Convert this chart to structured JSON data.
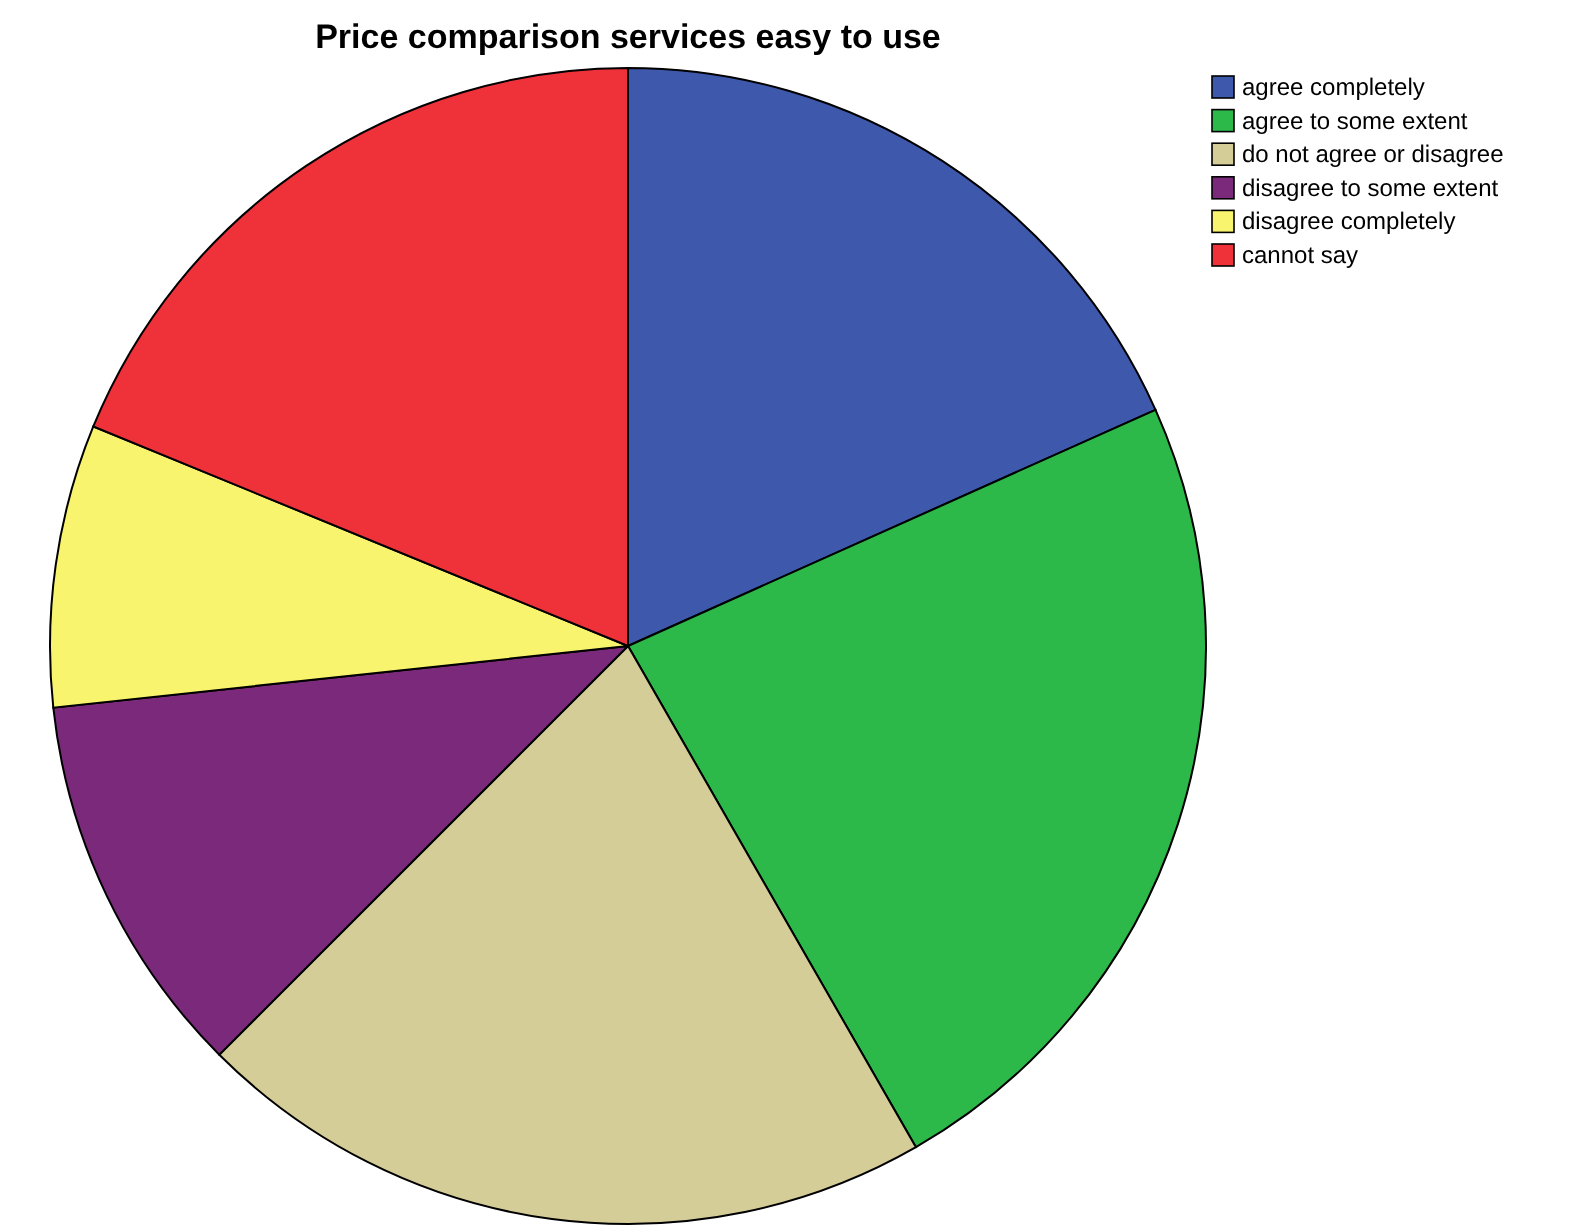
{
  "chart_data": {
    "type": "pie",
    "title": "Price comparison services easy to use",
    "categories": [
      "agree completely",
      "agree to some extent",
      "do not agree or disagree",
      "disagree to some extent",
      "disagree completely",
      "cannot say"
    ],
    "values": [
      18.3,
      23.4,
      20.8,
      10.8,
      7.9,
      18.8
    ],
    "colors": [
      "#3e58ac",
      "#2db84a",
      "#d4cd98",
      "#7b2a7b",
      "#f8f46e",
      "#ef323a"
    ],
    "legend": "top right"
  }
}
